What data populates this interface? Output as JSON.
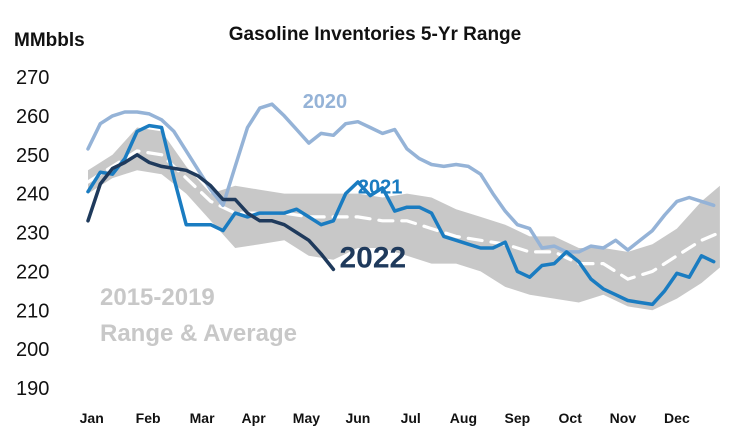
{
  "chart_data": {
    "type": "line",
    "title": "Gasoline Inventories 5-Yr Range",
    "ylabel": "MMbbls",
    "xlabel": "",
    "ylim": [
      190,
      270
    ],
    "yticks": [
      190,
      200,
      210,
      220,
      230,
      240,
      250,
      260,
      270
    ],
    "xlim": [
      0,
      52
    ],
    "categories": [
      "Jan",
      "Feb",
      "Mar",
      "Apr",
      "May",
      "Jun",
      "Jul",
      "Aug",
      "Sep",
      "Oct",
      "Nov",
      "Dec"
    ],
    "category_x": [
      0.3,
      4.9,
      9.3,
      13.5,
      17.8,
      22.0,
      26.3,
      30.6,
      35.0,
      39.3,
      43.6,
      48.0
    ],
    "grid": false,
    "range_band": {
      "label_line1": "2015-2019",
      "label_line2": "Range & Average",
      "color": "#c8c8c8",
      "x": [
        0,
        2,
        4,
        6,
        8,
        10,
        12,
        14,
        16,
        18,
        20,
        22,
        24,
        26,
        28,
        30,
        32,
        34,
        36,
        38,
        40,
        42,
        44,
        46,
        48,
        50,
        51.5
      ],
      "low": [
        240,
        244,
        246,
        245,
        240,
        233,
        226,
        227,
        228,
        224,
        223,
        226,
        226,
        224,
        222,
        222,
        220,
        216,
        214,
        213,
        212,
        214,
        211,
        210,
        213,
        217,
        221
      ],
      "high": [
        246,
        250,
        257,
        256,
        247,
        240,
        242,
        241,
        240,
        240,
        240,
        240,
        239,
        240,
        239,
        236,
        234,
        232,
        229,
        229,
        226,
        226,
        225,
        227,
        231,
        238,
        242
      ],
      "average": [
        243,
        247,
        251,
        250,
        244,
        238,
        235,
        235,
        235,
        234,
        234,
        234,
        233,
        233,
        231,
        229,
        228,
        227,
        225,
        225,
        222,
        222,
        218,
        220,
        224,
        228,
        230
      ]
    },
    "series": [
      {
        "name": "2020",
        "color": "#95b3d7",
        "label_x": 17.5,
        "label_y": 262,
        "x": [
          0,
          1,
          2,
          3,
          4,
          5,
          6,
          7,
          8,
          9,
          10,
          11,
          12,
          13,
          14,
          15,
          16,
          17,
          18,
          19,
          20,
          21,
          22,
          23,
          24,
          25,
          26,
          27,
          28,
          29,
          30,
          31,
          32,
          33,
          34,
          35,
          36,
          37,
          38,
          39,
          40,
          41,
          42,
          43,
          44,
          45,
          46,
          47,
          48,
          49,
          50,
          51
        ],
        "values": [
          251.5,
          258,
          260,
          261,
          261,
          260.5,
          259,
          256,
          251,
          246,
          241,
          237,
          247,
          257,
          262,
          263,
          260,
          256.5,
          253,
          255.5,
          255,
          258,
          258.5,
          257,
          255.5,
          256.5,
          251.5,
          249,
          247.5,
          247,
          247.5,
          247,
          245,
          240,
          235.5,
          232,
          231,
          226,
          226.5,
          225,
          225,
          226.5,
          226,
          228,
          225.5,
          228,
          230.5,
          234.5,
          238,
          239,
          238,
          237
        ]
      },
      {
        "name": "2021",
        "color": "#1a7cc1",
        "label_x": 22,
        "label_y": 240,
        "x": [
          0,
          1,
          2,
          3,
          4,
          5,
          6,
          7,
          8,
          9,
          10,
          11,
          12,
          13,
          14,
          15,
          16,
          17,
          18,
          19,
          20,
          21,
          22,
          23,
          24,
          25,
          26,
          27,
          28,
          29,
          30,
          31,
          32,
          33,
          34,
          35,
          36,
          37,
          38,
          39,
          40,
          41,
          42,
          43,
          44,
          45,
          46,
          47,
          48,
          49,
          50,
          51
        ],
        "values": [
          240.5,
          245.5,
          245,
          249,
          256,
          257.5,
          257,
          244,
          232,
          232,
          232,
          230.5,
          235,
          234,
          235,
          235,
          235,
          236,
          234,
          232,
          233,
          240,
          243,
          239.5,
          241.5,
          235.5,
          236.5,
          236.5,
          235,
          229,
          228,
          227,
          226,
          226,
          227.5,
          220,
          218.5,
          221.5,
          222,
          225,
          222.5,
          218,
          215.5,
          214,
          212.5,
          212,
          211.5,
          215,
          219.5,
          218.5,
          224,
          222.5
        ]
      },
      {
        "name": "2022",
        "color": "#1f3a5c",
        "label_x": 20.5,
        "label_y": 221,
        "x": [
          0,
          1,
          2,
          3,
          4,
          5,
          6,
          7,
          8,
          9,
          10,
          11,
          12,
          13,
          14,
          15,
          16,
          17,
          18,
          19,
          20
        ],
        "values": [
          233,
          242.5,
          246.5,
          248,
          250,
          248,
          247,
          246.5,
          246,
          244.5,
          242,
          238.5,
          238.5,
          235,
          233,
          233,
          232,
          230,
          228,
          224.5,
          220.5
        ]
      }
    ]
  }
}
